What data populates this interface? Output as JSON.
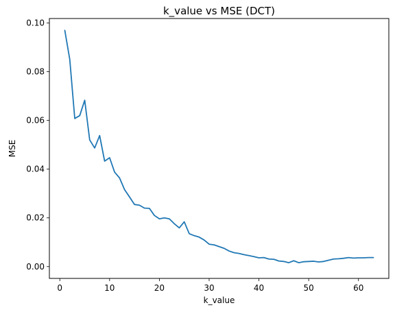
{
  "chart_data": {
    "type": "line",
    "title": "k_value vs MSE (DCT)",
    "xlabel": "k_value",
    "ylabel": "MSE",
    "xlim": [
      -2.1,
      66.1
    ],
    "ylim": [
      -0.00485,
      0.10185
    ],
    "xticks": [
      0,
      10,
      20,
      30,
      40,
      50,
      60
    ],
    "xtick_labels": [
      "0",
      "10",
      "20",
      "30",
      "40",
      "50",
      "60"
    ],
    "yticks": [
      0.0,
      0.02,
      0.04,
      0.06,
      0.08,
      0.1
    ],
    "ytick_labels": [
      "0.00",
      "0.02",
      "0.04",
      "0.06",
      "0.08",
      "0.10"
    ],
    "grid": false,
    "line_color": "#1f77b4",
    "series": [
      {
        "x": [
          1,
          2,
          3,
          4,
          5,
          6,
          7,
          8,
          9,
          10,
          11,
          12,
          13,
          14,
          15,
          16,
          17,
          18,
          19,
          20,
          21,
          22,
          23,
          24,
          25,
          26,
          27,
          28,
          29,
          30,
          31,
          32,
          33,
          34,
          35,
          36,
          37,
          38,
          39,
          40,
          41,
          42,
          43,
          44,
          45,
          46,
          47,
          48,
          49,
          50,
          51,
          52,
          53,
          54,
          55,
          56,
          57,
          58,
          59,
          60,
          61,
          62,
          63
        ],
        "y": [
          0.097,
          0.085,
          0.0608,
          0.062,
          0.0683,
          0.052,
          0.0487,
          0.0538,
          0.0433,
          0.0447,
          0.0388,
          0.0364,
          0.0316,
          0.0286,
          0.0255,
          0.0252,
          0.024,
          0.0239,
          0.021,
          0.0196,
          0.02,
          0.0196,
          0.0176,
          0.0159,
          0.0184,
          0.0135,
          0.0127,
          0.0121,
          0.0109,
          0.0092,
          0.0089,
          0.0082,
          0.0075,
          0.0064,
          0.0057,
          0.0054,
          0.0049,
          0.0045,
          0.0041,
          0.0036,
          0.0037,
          0.0031,
          0.003,
          0.0023,
          0.0021,
          0.0016,
          0.0024,
          0.0016,
          0.002,
          0.0021,
          0.0022,
          0.0019,
          0.0021,
          0.0026,
          0.0031,
          0.0032,
          0.0034,
          0.0037,
          0.0035,
          0.0036,
          0.0036,
          0.0037,
          0.0037
        ]
      }
    ]
  }
}
